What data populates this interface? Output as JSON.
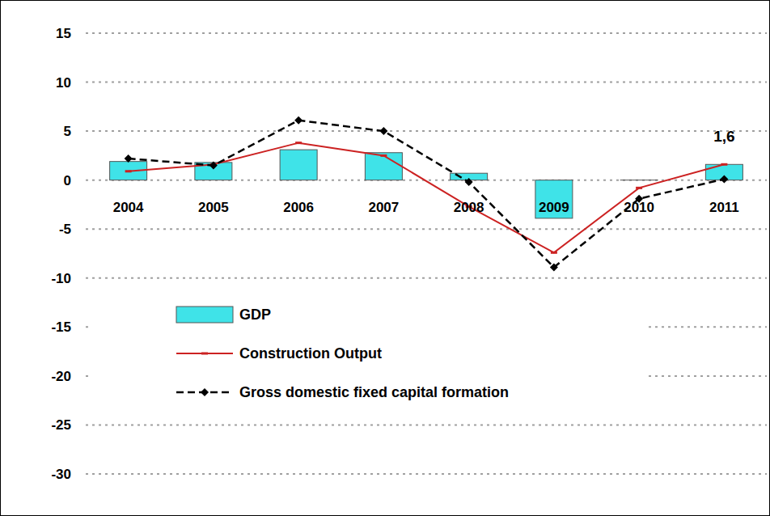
{
  "chart_data": {
    "type": "bar",
    "categories": [
      "2004",
      "2005",
      "2006",
      "2007",
      "2008",
      "2009",
      "2010",
      "2011"
    ],
    "series": [
      {
        "name": "GDP",
        "type": "bar",
        "color": "#3fe3e8",
        "values": [
          1.9,
          1.8,
          3.1,
          2.8,
          0.7,
          -3.9,
          0.0,
          1.6
        ],
        "data_labels": true,
        "value_labels": [
          null,
          null,
          null,
          null,
          null,
          null,
          null,
          "1,6"
        ]
      },
      {
        "name": "Construction Output",
        "type": "line",
        "color": "#cc2222",
        "line_style": "solid",
        "marker": "dash",
        "values": [
          0.9,
          1.6,
          3.8,
          2.5,
          -2.7,
          -7.4,
          -0.8,
          1.6
        ]
      },
      {
        "name": "Gross domestic fixed capital formation",
        "type": "line",
        "color": "#000000",
        "line_style": "dashed",
        "marker": "diamond",
        "values": [
          2.2,
          1.5,
          6.1,
          5.0,
          -0.2,
          -8.9,
          -1.9,
          0.1
        ]
      }
    ],
    "ylim": [
      -30,
      15
    ],
    "yticks": [
      -30,
      -25,
      -20,
      -15,
      -10,
      -5,
      0,
      5,
      10,
      15
    ],
    "grid": true,
    "legend": "left"
  }
}
